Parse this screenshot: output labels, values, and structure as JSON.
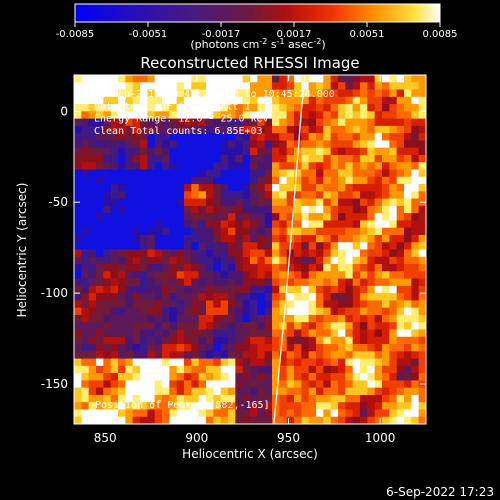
{
  "chart_data": {
    "type": "heatmap",
    "title": "Reconstructed RHESSI Image",
    "xlabel": "Heliocentric X (arcsec)",
    "ylabel": "Heliocentric Y (arcsec)",
    "xlim": [
      833,
      1025
    ],
    "ylim": [
      -172,
      20
    ],
    "x_ticks": [
      850,
      900,
      950,
      1000
    ],
    "y_ticks": [
      0,
      -50,
      -100,
      -150
    ],
    "colorbar": {
      "range": [
        -0.0085,
        0.0085
      ],
      "ticks": [
        "-0.0085",
        "-0.0051",
        "-0.0017",
        "0.0017",
        "0.0051",
        "0.0085"
      ],
      "label_prefix": "(photons cm",
      "label_sup1": "-2",
      "label_mid": " s",
      "label_sup2": "-1",
      "label_mid2": " asec",
      "label_sup3": "-2",
      "label_suffix": ")"
    },
    "annotations": [
      "23-Sep-2017 10:42:20.000 to 10:45:24.000",
      "Detectors: 3F 6F 8F, Att 1",
      "Energy Range: 12.0 - 25.0 keV",
      "Clean    Total counts: 6.85E+03"
    ],
    "peak_label": "Position of Peak = [882,-165]",
    "peak": [
      882,
      -165
    ],
    "limb_curve": [
      [
        942,
        -172
      ],
      [
        948,
        -110
      ],
      [
        953,
        -50
      ],
      [
        957,
        0
      ],
      [
        959,
        20
      ]
    ],
    "colors": [
      "#0000ff",
      "#3a1c8c",
      "#5a1870",
      "#7a1a3a",
      "#c0200a",
      "#ff5a00",
      "#ffb000",
      "#ffff66",
      "#ffffff"
    ]
  },
  "footer": {
    "date": "6-Sep-2022 17:23"
  }
}
